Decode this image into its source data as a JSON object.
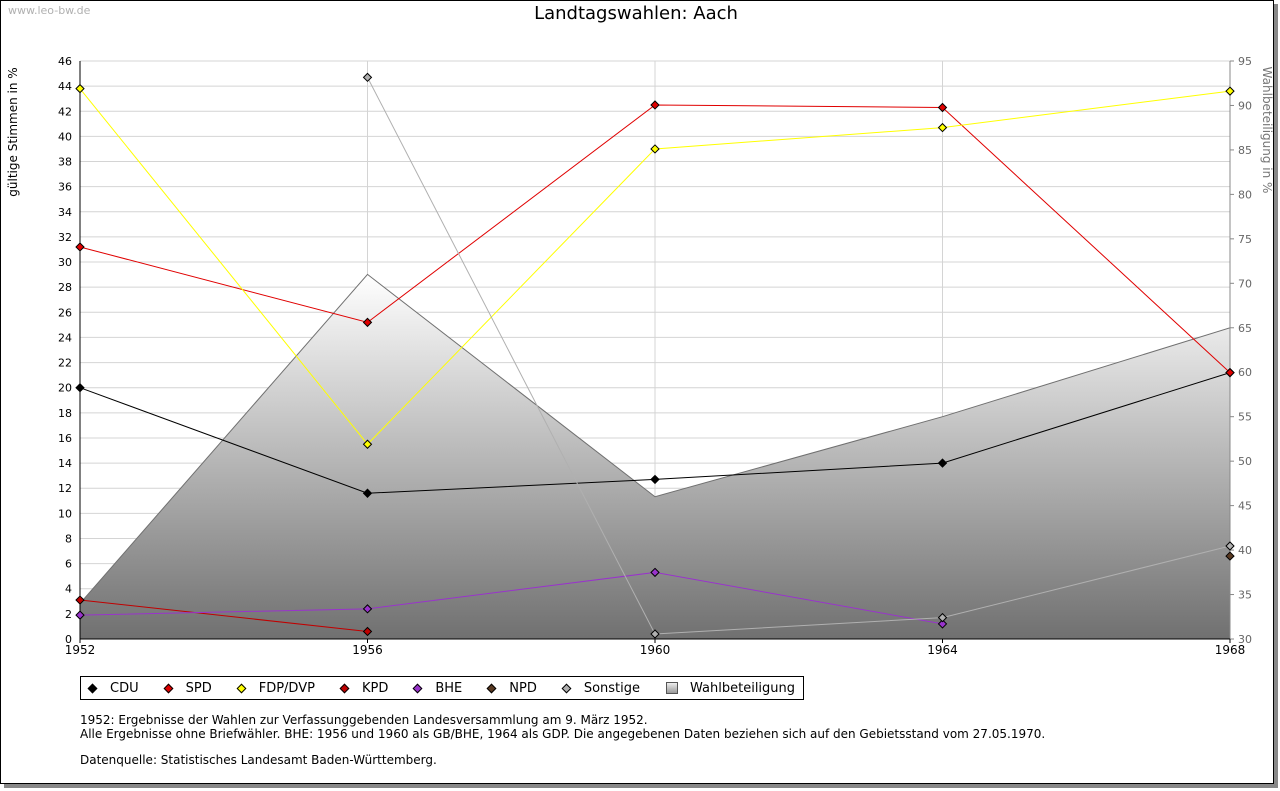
{
  "watermark": "www.leo-bw.de",
  "chart_data": {
    "type": "line",
    "title": "Landtagswahlen: Aach",
    "x": [
      1952,
      1956,
      1960,
      1964,
      1968
    ],
    "ylabel": "gültige Stimmen in %",
    "y2label": "Wahlbeteiligung in %",
    "ylim": [
      0,
      46
    ],
    "y2lim": [
      30,
      95
    ],
    "yticks": [
      0,
      2,
      4,
      6,
      8,
      10,
      12,
      14,
      16,
      18,
      20,
      22,
      24,
      26,
      28,
      30,
      32,
      34,
      36,
      38,
      40,
      42,
      44,
      46
    ],
    "y2ticks": [
      30,
      35,
      40,
      45,
      50,
      55,
      60,
      65,
      70,
      75,
      80,
      85,
      90,
      95
    ],
    "grid": true,
    "legend_position": "bottom",
    "series": [
      {
        "name": "CDU",
        "color": "#000000",
        "values": [
          20.0,
          11.6,
          12.7,
          14.0,
          21.2
        ]
      },
      {
        "name": "SPD",
        "color": "#e00000",
        "values": [
          31.2,
          25.2,
          42.5,
          42.3,
          21.2
        ]
      },
      {
        "name": "FDP/DVP",
        "color": "#ffff00",
        "values": [
          43.8,
          15.5,
          39.0,
          40.7,
          43.6
        ]
      },
      {
        "name": "KPD",
        "color": "#c00000",
        "values": [
          3.1,
          0.6,
          null,
          null,
          null
        ]
      },
      {
        "name": "BHE",
        "color": "#9933cc",
        "values": [
          1.9,
          2.4,
          5.3,
          1.2,
          null
        ]
      },
      {
        "name": "NPD",
        "color": "#5a3a22",
        "values": [
          null,
          null,
          null,
          null,
          6.6
        ]
      },
      {
        "name": "Sonstige",
        "color": "#b0b0b0",
        "values": [
          null,
          44.7,
          0.4,
          1.7,
          7.4
        ]
      }
    ],
    "turnout": {
      "name": "Wahlbeteiligung",
      "values": [
        34.0,
        71.0,
        46.0,
        55.0,
        65.0
      ]
    }
  },
  "notes": {
    "line1": "1952: Ergebnisse der Wahlen zur Verfassunggebenden Landesversammlung am 9. März 1952.",
    "line2": "Alle Ergebnisse ohne Briefwähler. BHE: 1956 und 1960 als GB/BHE, 1964 als GDP. Die angegebenen Daten beziehen sich auf den Gebietsstand vom 27.05.1970.",
    "source": "Datenquelle: Statistisches Landesamt Baden-Württemberg."
  }
}
